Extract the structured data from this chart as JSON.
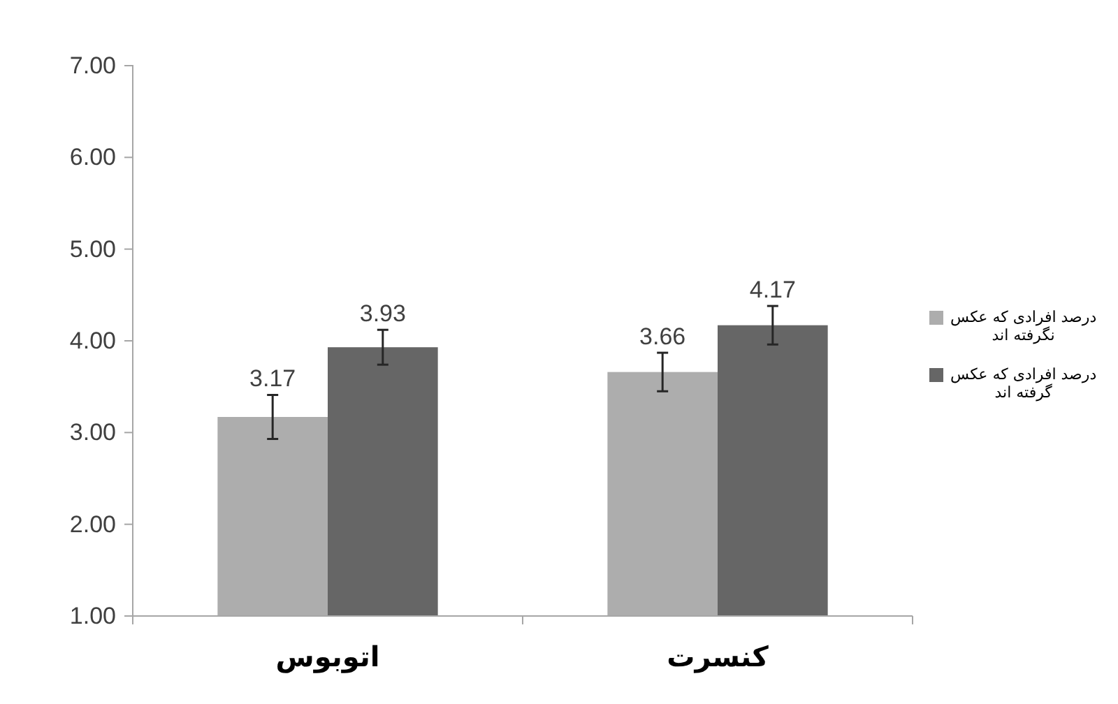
{
  "chart_data": {
    "type": "bar",
    "categories": [
      "اتوبوس",
      "کنسرت"
    ],
    "series": [
      {
        "name": "درصد افرادی که عکس نگرفته اند",
        "color": "#adadad",
        "values": [
          3.17,
          3.66
        ],
        "errors": [
          0.24,
          0.21
        ]
      },
      {
        "name": "درصد افرادی که عکس گرفته اند",
        "color": "#666666",
        "values": [
          3.93,
          4.17
        ],
        "errors": [
          0.19,
          0.21
        ]
      }
    ],
    "ylim": [
      1,
      7
    ],
    "yticks": [
      {
        "value": 1,
        "label": "1.00"
      },
      {
        "value": 2,
        "label": "2.00"
      },
      {
        "value": 3,
        "label": "3.00"
      },
      {
        "value": 4,
        "label": "4.00"
      },
      {
        "value": 5,
        "label": "5.00"
      },
      {
        "value": 6,
        "label": "6.00"
      },
      {
        "value": 7,
        "label": "7.00"
      }
    ],
    "data_labels": true,
    "legend": "right"
  }
}
